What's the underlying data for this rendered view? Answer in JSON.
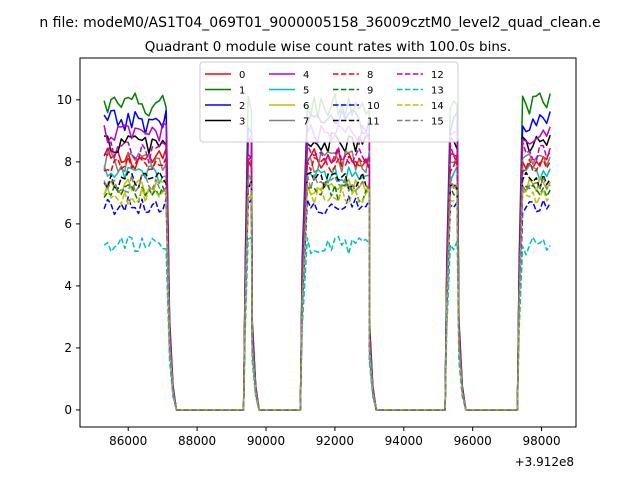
{
  "chart_data": {
    "type": "line",
    "suptitle": "n file: modeM0/AS1T04_069T01_9000005158_36009cztM0_level2_quad_clean.e",
    "title": "Quadrant 0 module wise count rates with 100.0s bins.",
    "xlabel": "",
    "ylabel": "",
    "x_offset_label": "+3.912e8",
    "xlim": [
      84600,
      99000
    ],
    "ylim": [
      -0.55,
      11.35
    ],
    "x_ticks": [
      86000,
      88000,
      90000,
      92000,
      94000,
      96000,
      98000
    ],
    "x_tick_labels": [
      "86000",
      "88000",
      "90000",
      "92000",
      "94000",
      "96000",
      "98000"
    ],
    "y_ticks": [
      0,
      2,
      4,
      6,
      8,
      10
    ],
    "y_tick_labels": [
      "0",
      "2",
      "4",
      "6",
      "8",
      "10"
    ],
    "legend_location": "upper center",
    "segments": [
      {
        "start": 85300,
        "end": 87100
      },
      {
        "start": 89480,
        "end": 89600
      },
      {
        "start": 91200,
        "end": 93000
      },
      {
        "start": 95350,
        "end": 95600
      },
      {
        "start": 97450,
        "end": 98300
      }
    ],
    "gaps": [
      {
        "from": 87400,
        "to": 89350
      },
      {
        "from": 89800,
        "to": 91000
      },
      {
        "from": 93200,
        "to": 95200
      },
      {
        "from": 95800,
        "to": 97300
      }
    ],
    "series": [
      {
        "name": "0",
        "color": "#ff0000",
        "dash": "solid",
        "level": 8.1,
        "noise": 0.35
      },
      {
        "name": "1",
        "color": "#008000",
        "dash": "solid",
        "level": 9.8,
        "noise": 0.45
      },
      {
        "name": "2",
        "color": "#0000ff",
        "dash": "solid",
        "level": 9.3,
        "noise": 0.4
      },
      {
        "name": "3",
        "color": "#000000",
        "dash": "solid",
        "level": 8.6,
        "noise": 0.35
      },
      {
        "name": "4",
        "color": "#bf00bf",
        "dash": "solid",
        "level": 8.9,
        "noise": 0.35
      },
      {
        "name": "5",
        "color": "#00bfbf",
        "dash": "solid",
        "level": 7.6,
        "noise": 0.3
      },
      {
        "name": "6",
        "color": "#bfbf00",
        "dash": "solid",
        "level": 7.2,
        "noise": 0.3
      },
      {
        "name": "7",
        "color": "#808080",
        "dash": "solid",
        "level": 8.0,
        "noise": 0.35
      },
      {
        "name": "8",
        "color": "#ff0000",
        "dash": "dashed",
        "level": 7.9,
        "noise": 0.3
      },
      {
        "name": "9",
        "color": "#008000",
        "dash": "dashed",
        "level": 7.0,
        "noise": 0.3
      },
      {
        "name": "10",
        "color": "#0000ff",
        "dash": "dashed",
        "level": 6.6,
        "noise": 0.3
      },
      {
        "name": "11",
        "color": "#000000",
        "dash": "dashed",
        "level": 7.4,
        "noise": 0.3
      },
      {
        "name": "12",
        "color": "#bf00bf",
        "dash": "dashed",
        "level": 8.3,
        "noise": 0.35
      },
      {
        "name": "13",
        "color": "#00bfbf",
        "dash": "dashed",
        "level": 5.3,
        "noise": 0.3
      },
      {
        "name": "14",
        "color": "#bfbf00",
        "dash": "dashed",
        "level": 6.9,
        "noise": 0.3
      },
      {
        "name": "15",
        "color": "#808080",
        "dash": "dashed",
        "level": 7.3,
        "noise": 0.3
      }
    ]
  }
}
